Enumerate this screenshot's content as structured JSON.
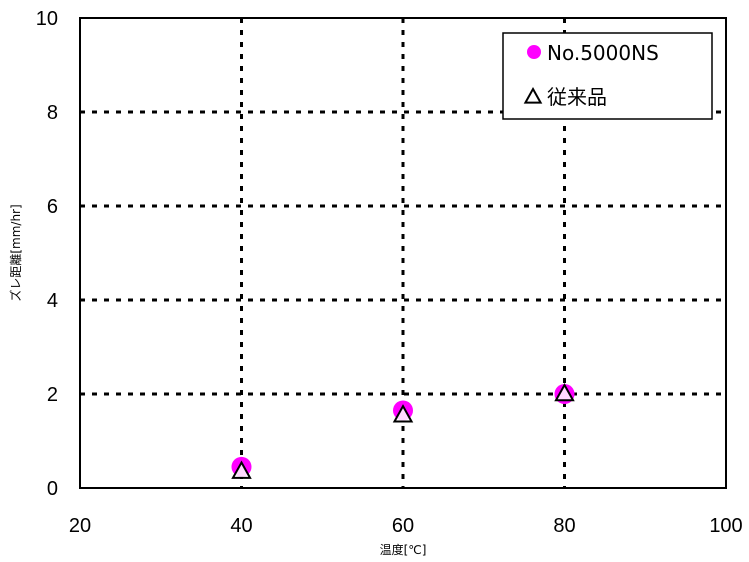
{
  "chart_data": {
    "type": "scatter",
    "xlabel": "温度[℃]",
    "ylabel": "ズレ距離[mm/hr]",
    "xlim": [
      20,
      100
    ],
    "ylim": [
      0,
      10
    ],
    "xticks": [
      "20",
      "40",
      "60",
      "80",
      "100"
    ],
    "yticks": [
      "0",
      "2",
      "4",
      "6",
      "8",
      "10"
    ],
    "grid": true,
    "legend_position": "top-right",
    "series": [
      {
        "name": "No.5000NS",
        "marker": "circle",
        "color": "#ff00ff",
        "points": [
          {
            "x": 40,
            "y": 0.45
          },
          {
            "x": 60,
            "y": 1.65
          },
          {
            "x": 80,
            "y": 2.0
          }
        ]
      },
      {
        "name": "従来品",
        "marker": "triangle",
        "color": "#000000",
        "points": [
          {
            "x": 40,
            "y": 0.35
          },
          {
            "x": 60,
            "y": 1.55
          },
          {
            "x": 80,
            "y": 2.0
          }
        ]
      }
    ]
  }
}
